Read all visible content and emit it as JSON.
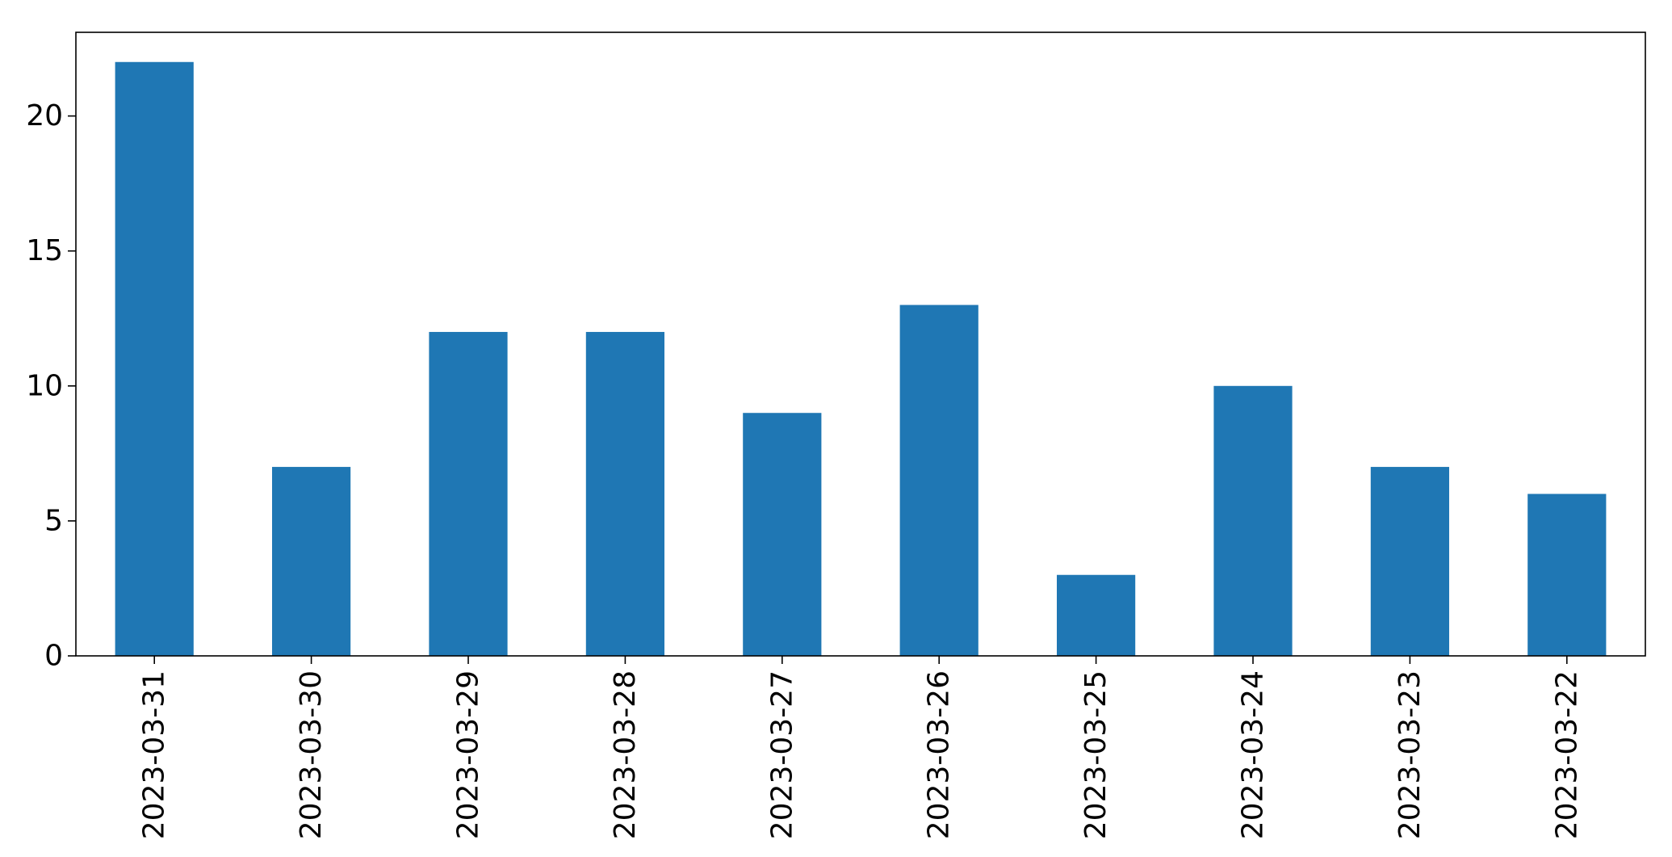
{
  "chart_data": {
    "type": "bar",
    "title": "",
    "xlabel": "",
    "ylabel": "",
    "categories": [
      "2023-03-31",
      "2023-03-30",
      "2023-03-29",
      "2023-03-28",
      "2023-03-27",
      "2023-03-26",
      "2023-03-25",
      "2023-03-24",
      "2023-03-23",
      "2023-03-22"
    ],
    "values": [
      22,
      7,
      12,
      12,
      9,
      13,
      3,
      10,
      7,
      6
    ],
    "ylim": [
      0,
      23.1
    ],
    "yticks": [
      0,
      5,
      10,
      15,
      20
    ],
    "grid": false,
    "legend": "none",
    "bar_color": "#1f77b4",
    "axis_color": "#000000"
  }
}
